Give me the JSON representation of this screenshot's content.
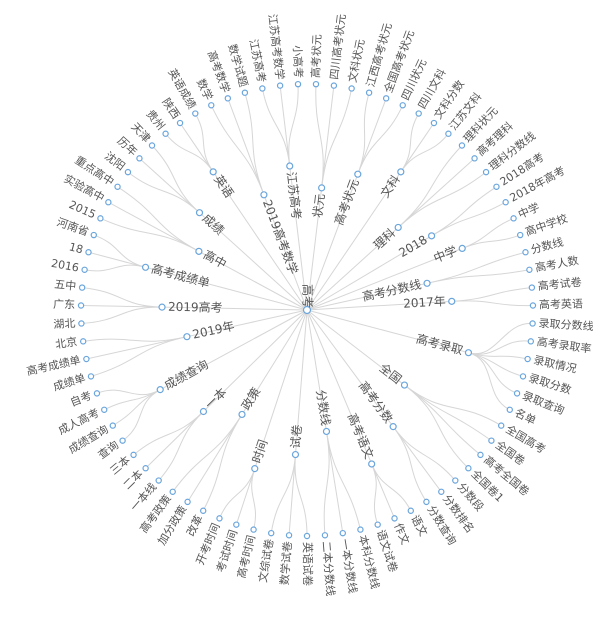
{
  "root": {
    "label": "高考"
  },
  "children": [
    {
      "label": "状元",
      "leaves": [
        "高考状元",
        "四川高考状元",
        "文科状元"
      ]
    },
    {
      "label": "高考状元",
      "leaves": [
        "江西高考状元",
        "全国高考状元",
        "四川状元"
      ]
    },
    {
      "label": "文科",
      "leaves": [
        "四川文科",
        "文科分数",
        "江苏文科"
      ]
    },
    {
      "label": "理科",
      "leaves": [
        "理科状元",
        "高考理科",
        "理科分数线"
      ]
    },
    {
      "label": "2018",
      "leaves": [
        "2018高考",
        "2018年高考"
      ]
    },
    {
      "label": "中学",
      "leaves": [
        "中学",
        "高中学校"
      ]
    },
    {
      "label": "高考分数线",
      "leaves": [
        "分数线",
        "高考人数"
      ]
    },
    {
      "label": "2017年",
      "leaves": [
        "高考试卷",
        "高考英语"
      ]
    },
    {
      "label": "高考录取",
      "leaves": [
        "录取分数线",
        "高考录取率",
        "录取情况",
        "录取分数",
        "录取查询",
        "名单"
      ]
    },
    {
      "label": "全国",
      "leaves": [
        "全国高考",
        "全国卷",
        "高考全国卷",
        "全国卷1"
      ]
    },
    {
      "label": "高考分数",
      "leaves": [
        "分数段",
        "分数排名",
        "分数查询"
      ]
    },
    {
      "label": "高考语文",
      "leaves": [
        "语文",
        "作文",
        "语文试卷"
      ]
    },
    {
      "label": "分数线",
      "leaves": [
        "本科分数线",
        "一本分数线",
        "二本分数线"
      ]
    },
    {
      "label": "试卷",
      "leaves": [
        "英语试卷",
        "数学试卷",
        "文综试卷"
      ]
    },
    {
      "label": "时间",
      "leaves": [
        "高考时间",
        "考试时间",
        "开考时间"
      ]
    },
    {
      "label": "政策",
      "leaves": [
        "改革",
        "加分政策",
        "高考政策"
      ]
    },
    {
      "label": "一本",
      "leaves": [
        "一本线",
        "二本",
        "三本"
      ]
    },
    {
      "label": "成绩查询",
      "leaves": [
        "查询",
        "成绩查询",
        "成人高考",
        "自考"
      ]
    },
    {
      "label": "2019年",
      "leaves": [
        "成绩单",
        "高考成绩单",
        "北京"
      ]
    },
    {
      "label": "2019高考",
      "leaves": [
        "湖北",
        "广东",
        "五中"
      ]
    },
    {
      "label": "高考成绩单",
      "leaves": [
        "2016",
        "18",
        "河南省"
      ]
    },
    {
      "label": "高中",
      "leaves": [
        "2015",
        "实验高中",
        "重点高中"
      ]
    },
    {
      "label": "成绩",
      "leaves": [
        "沈阳",
        "历年",
        "天津"
      ]
    },
    {
      "label": "英语",
      "leaves": [
        "贵州",
        "陕西",
        "英语成绩"
      ]
    },
    {
      "label": "2019高考数学",
      "leaves": [
        "数学",
        "高考数学",
        "数学试题"
      ]
    },
    {
      "label": "江苏高考",
      "leaves": [
        "江苏高考",
        "江苏高考数学",
        "小高考"
      ]
    }
  ]
}
